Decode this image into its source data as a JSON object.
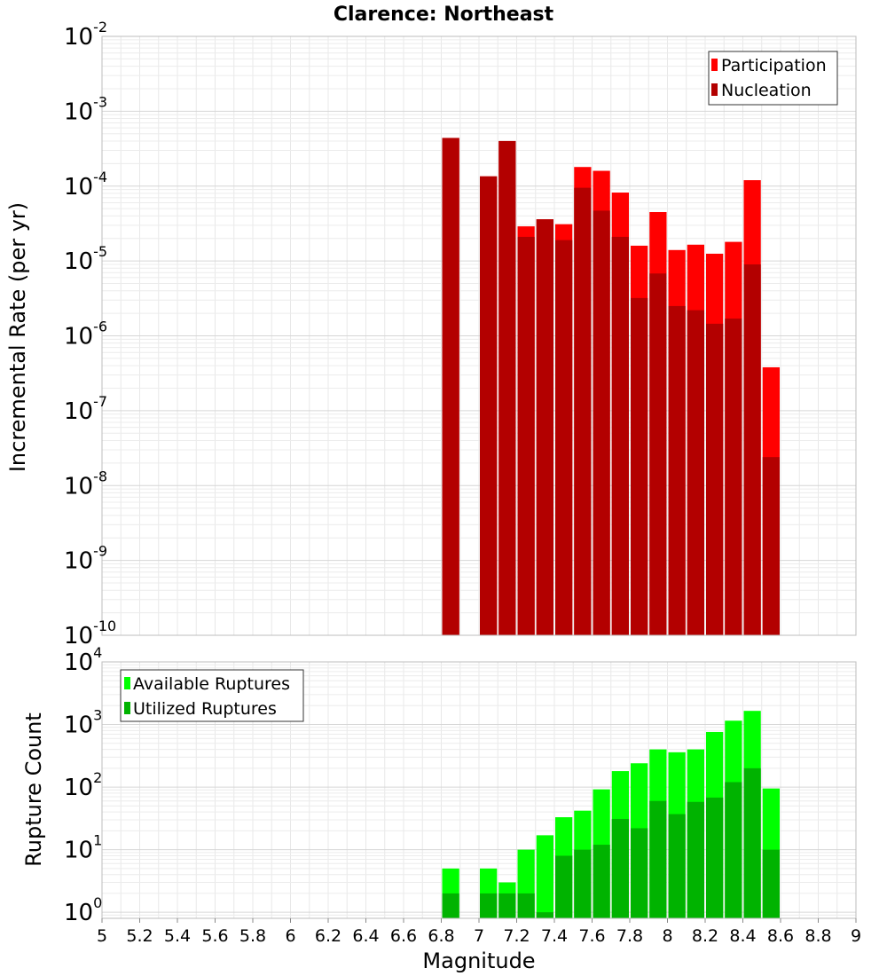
{
  "title": "Clarence: Northeast",
  "chart_data": [
    {
      "type": "bar",
      "ylabel": "Incremental Rate (per yr)",
      "y_scale": "log",
      "ylim": [
        1e-10,
        0.01
      ],
      "xlim": [
        5,
        9
      ],
      "bar_width": 0.1,
      "grid": true,
      "legend_position": "top-right",
      "y_ticks": [
        {
          "base": "10",
          "exp": "-10"
        },
        {
          "base": "10",
          "exp": "-9"
        },
        {
          "base": "10",
          "exp": "-8"
        },
        {
          "base": "10",
          "exp": "-7"
        },
        {
          "base": "10",
          "exp": "-6"
        },
        {
          "base": "10",
          "exp": "-5"
        },
        {
          "base": "10",
          "exp": "-4"
        },
        {
          "base": "10",
          "exp": "-3"
        },
        {
          "base": "10",
          "exp": "-2"
        }
      ],
      "series": [
        {
          "name": "Participation",
          "color": "#ff0000",
          "x": [
            6.85,
            7.05,
            7.15,
            7.25,
            7.35,
            7.45,
            7.55,
            7.65,
            7.75,
            7.85,
            7.95,
            8.05,
            8.15,
            8.25,
            8.35,
            8.45,
            8.55
          ],
          "values": [
            0.00044,
            0.000135,
            0.0004,
            2.9e-05,
            3.6e-05,
            3.1e-05,
            0.00018,
            0.00016,
            8.2e-05,
            1.6e-05,
            4.5e-05,
            1.4e-05,
            1.65e-05,
            1.25e-05,
            1.8e-05,
            0.00012,
            3.8e-07
          ]
        },
        {
          "name": "Nucleation",
          "color": "#b30000",
          "x": [
            6.85,
            7.05,
            7.15,
            7.25,
            7.35,
            7.45,
            7.55,
            7.65,
            7.75,
            7.85,
            7.95,
            8.05,
            8.15,
            8.25,
            8.35,
            8.45,
            8.55
          ],
          "values": [
            0.00044,
            0.000135,
            0.0004,
            2.1e-05,
            3.6e-05,
            1.9e-05,
            9.5e-05,
            4.7e-05,
            2.1e-05,
            3.2e-06,
            6.8e-06,
            2.5e-06,
            2.2e-06,
            1.45e-06,
            1.7e-06,
            9e-06,
            2.4e-08
          ]
        }
      ]
    },
    {
      "type": "bar",
      "ylabel": "Rupture Count",
      "xlabel": "Magnitude",
      "y_scale": "log",
      "ylim": [
        0.8,
        10000
      ],
      "xlim": [
        5,
        9
      ],
      "bar_width": 0.1,
      "grid": true,
      "legend_position": "top-left",
      "x_ticks": [
        "5",
        "5.2",
        "5.4",
        "5.6",
        "5.8",
        "6",
        "6.2",
        "6.4",
        "6.6",
        "6.8",
        "7",
        "7.2",
        "7.4",
        "7.6",
        "7.8",
        "8",
        "8.2",
        "8.4",
        "8.6",
        "8.8",
        "9"
      ],
      "y_ticks": [
        {
          "base": "10",
          "exp": "0"
        },
        {
          "base": "10",
          "exp": "1"
        },
        {
          "base": "10",
          "exp": "2"
        },
        {
          "base": "10",
          "exp": "3"
        },
        {
          "base": "10",
          "exp": "4"
        }
      ],
      "series": [
        {
          "name": "Available Ruptures",
          "color": "#00ff00",
          "x": [
            6.85,
            7.05,
            7.15,
            7.25,
            7.35,
            7.45,
            7.55,
            7.65,
            7.75,
            7.85,
            7.95,
            8.05,
            8.15,
            8.25,
            8.35,
            8.45,
            8.55
          ],
          "values": [
            5,
            5,
            3,
            10,
            17,
            33,
            42,
            92,
            180,
            240,
            400,
            360,
            400,
            760,
            1150,
            1650,
            95
          ]
        },
        {
          "name": "Utilized Ruptures",
          "color": "#00b300",
          "x": [
            6.85,
            7.05,
            7.15,
            7.25,
            7.35,
            7.45,
            7.55,
            7.65,
            7.75,
            7.85,
            7.95,
            8.05,
            8.15,
            8.25,
            8.35,
            8.45,
            8.55
          ],
          "values": [
            2,
            2,
            2,
            2,
            1,
            8,
            10,
            12,
            31,
            22,
            60,
            37,
            58,
            68,
            120,
            200,
            10
          ]
        }
      ]
    }
  ]
}
